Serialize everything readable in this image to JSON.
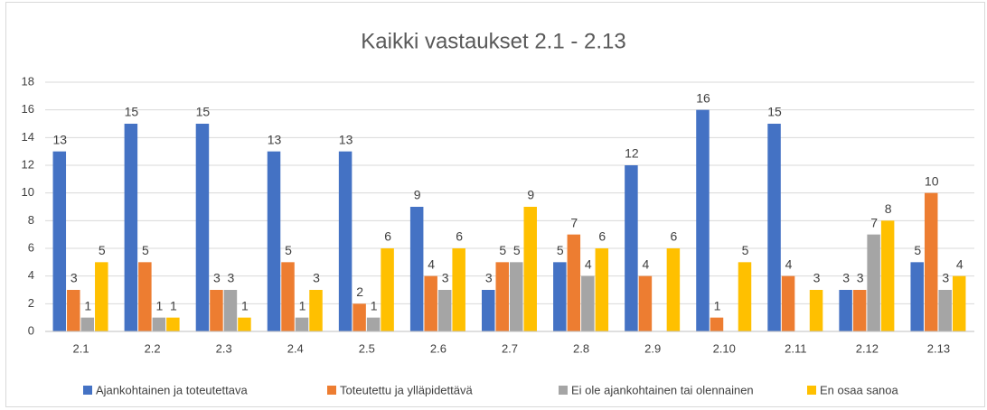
{
  "chart_data": {
    "type": "bar",
    "title": "Kaikki vastaukset 2.1 - 2.13",
    "categories": [
      "2.1",
      "2.2",
      "2.3",
      "2.4",
      "2.5",
      "2.6",
      "2.7",
      "2.8",
      "2.9",
      "2.10",
      "2.11",
      "2.12",
      "2.13"
    ],
    "series": [
      {
        "name": "Ajankohtainen ja toteutettava",
        "color": "#4472c4",
        "values": [
          13,
          15,
          15,
          13,
          13,
          9,
          3,
          5,
          12,
          16,
          15,
          3,
          5
        ]
      },
      {
        "name": "Toteutettu ja ylläpidettävä",
        "color": "#ed7d31",
        "values": [
          3,
          5,
          3,
          5,
          2,
          4,
          5,
          7,
          4,
          1,
          4,
          3,
          10
        ]
      },
      {
        "name": "Ei ole ajankohtainen tai olennainen",
        "color": "#a5a5a5",
        "values": [
          1,
          1,
          3,
          1,
          1,
          3,
          5,
          4,
          null,
          null,
          null,
          7,
          3
        ]
      },
      {
        "name": "En osaa sanoa",
        "color": "#ffc000",
        "values": [
          5,
          1,
          1,
          3,
          6,
          6,
          9,
          6,
          6,
          5,
          3,
          8,
          4
        ]
      }
    ],
    "ylim": [
      0,
      18
    ],
    "yticks": [
      0,
      2,
      4,
      6,
      8,
      10,
      12,
      14,
      16,
      18
    ],
    "grid": true,
    "legend": "bottom"
  }
}
